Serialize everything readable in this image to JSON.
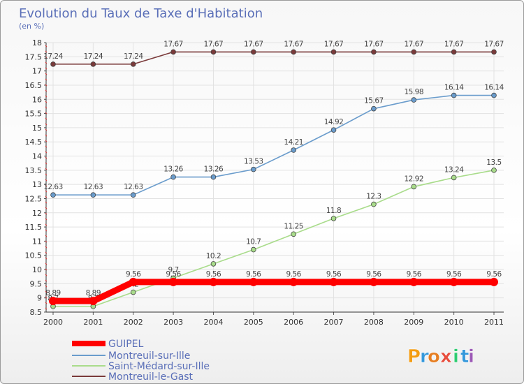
{
  "chart_data": {
    "type": "line",
    "title": "Evolution du Taux de Taxe d'Habitation",
    "subtitle": "(en %)",
    "xlabel": "",
    "ylabel": "",
    "x": [
      2000,
      2001,
      2002,
      2003,
      2004,
      2005,
      2006,
      2007,
      2008,
      2009,
      2010,
      2011
    ],
    "ylim": [
      8.5,
      18
    ],
    "yticks": [
      8.5,
      9,
      9.5,
      10,
      10.5,
      11,
      11.5,
      12,
      12.5,
      13,
      13.5,
      14,
      14.5,
      15,
      15.5,
      16,
      16.5,
      17,
      17.5,
      18
    ],
    "grid": true,
    "legend_position": "bottom-left",
    "series": [
      {
        "name": "GUIPEL",
        "color": "#ff0000",
        "values": [
          8.89,
          8.89,
          9.56,
          9.56,
          9.56,
          9.56,
          9.56,
          9.56,
          9.56,
          9.56,
          9.56,
          9.56
        ],
        "labels": [
          "8.89",
          "8.89",
          "9.56",
          "9.56",
          "9.56",
          "9.56",
          "9.56",
          "9.56",
          "9.56",
          "9.56",
          "9.56",
          "9.56"
        ]
      },
      {
        "name": "Montreuil-sur-Ille",
        "color": "#6a9ccc",
        "values": [
          12.63,
          12.63,
          12.63,
          13.26,
          13.26,
          13.53,
          14.21,
          14.92,
          15.67,
          15.98,
          16.14,
          16.14
        ],
        "labels": [
          "12.63",
          "12.63",
          "12.63",
          "13.26",
          "13.26",
          "13.53",
          "14.21",
          "14.92",
          "15.67",
          "15.98",
          "16.14",
          "16.14"
        ]
      },
      {
        "name": "Saint-Médard-sur-Ille",
        "color": "#a9dc8b",
        "values": [
          8.7,
          8.7,
          9.2,
          9.7,
          10.2,
          10.7,
          11.25,
          11.8,
          12.3,
          12.92,
          13.24,
          13.5
        ],
        "labels": [
          "8.7",
          "8.7",
          "9.2",
          "9.7",
          "10.2",
          "10.7",
          "11.25",
          "11.8",
          "12.3",
          "12.92",
          "13.24",
          "13.5"
        ]
      },
      {
        "name": "Montreuil-le-Gast",
        "color": "#7a3a3a",
        "values": [
          17.24,
          17.24,
          17.24,
          17.67,
          17.67,
          17.67,
          17.67,
          17.67,
          17.67,
          17.67,
          17.67,
          17.67
        ],
        "labels": [
          "17.24",
          "17.24",
          "17.24",
          "17.67",
          "17.67",
          "17.67",
          "17.67",
          "17.67",
          "17.67",
          "17.67",
          "17.67",
          "17.67"
        ]
      }
    ]
  },
  "brand": {
    "logo_text": "Proxiti",
    "letters": [
      "P",
      "r",
      "o",
      "x",
      "i",
      "t",
      "i"
    ],
    "letter_colors": [
      "#f39c12",
      "#3498db",
      "#e67e22",
      "#e74c3c",
      "#2ecc71",
      "#3498db",
      "#9b59b6"
    ]
  }
}
